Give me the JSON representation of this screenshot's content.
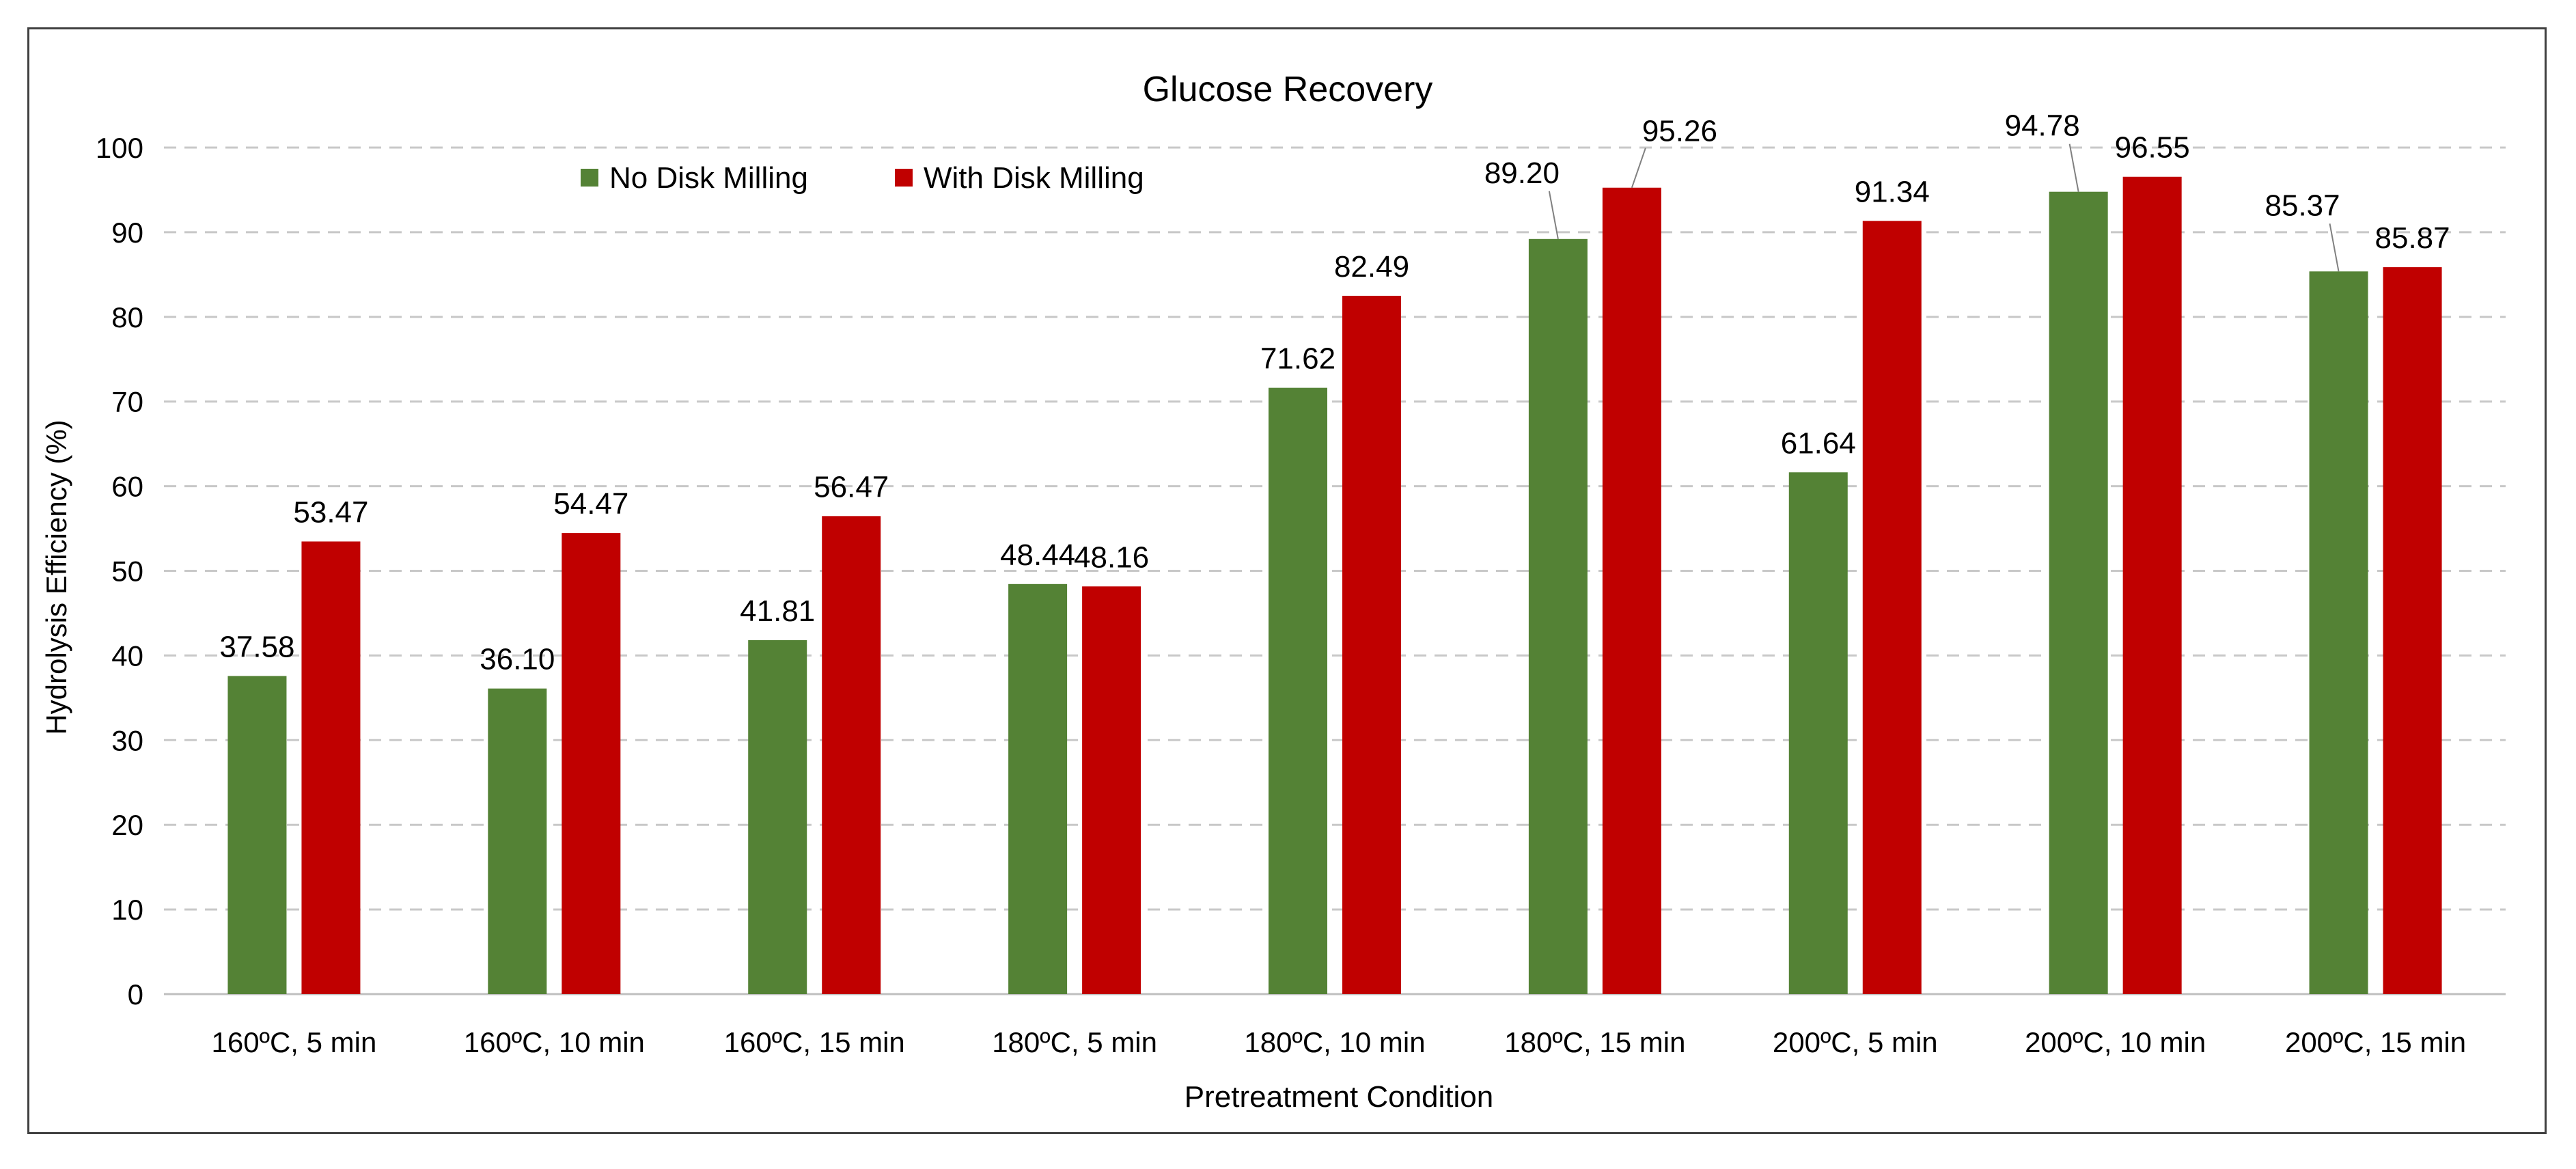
{
  "chart_data": {
    "type": "bar",
    "title": "Glucose Recovery",
    "xlabel": "Pretreatment Condition",
    "ylabel": "Hydrolysis Efficiency (%)",
    "ylim": [
      0,
      100
    ],
    "yticks": [
      0,
      10,
      20,
      30,
      40,
      50,
      60,
      70,
      80,
      90,
      100
    ],
    "grid": "horizontal-dashed",
    "legend_position": "top-left",
    "categories": [
      "160ºC, 5 min",
      "160ºC, 10 min",
      "160ºC, 15 min",
      "180ºC, 5 min",
      "180ºC, 10 min",
      "180ºC, 15 min",
      "200ºC, 5 min",
      "200ºC, 10 min",
      "200ºC, 15 min"
    ],
    "series": [
      {
        "name": "No Disk Milling",
        "color": "#548235",
        "values": [
          37.58,
          36.1,
          41.81,
          48.44,
          71.62,
          89.2,
          61.64,
          94.78,
          85.37
        ],
        "labels": [
          "37.58",
          "36.10",
          "41.81",
          "48.44",
          "71.62",
          "89.20",
          "61.64",
          "94.78",
          "85.37"
        ]
      },
      {
        "name": "With Disk Milling",
        "color": "#C00000",
        "values": [
          53.47,
          54.47,
          56.47,
          48.16,
          82.49,
          95.26,
          91.34,
          96.55,
          85.87
        ],
        "labels": [
          "53.47",
          "54.47",
          "56.47",
          "48.16",
          "82.49",
          "95.26",
          "91.34",
          "96.55",
          "85.87"
        ]
      }
    ]
  }
}
